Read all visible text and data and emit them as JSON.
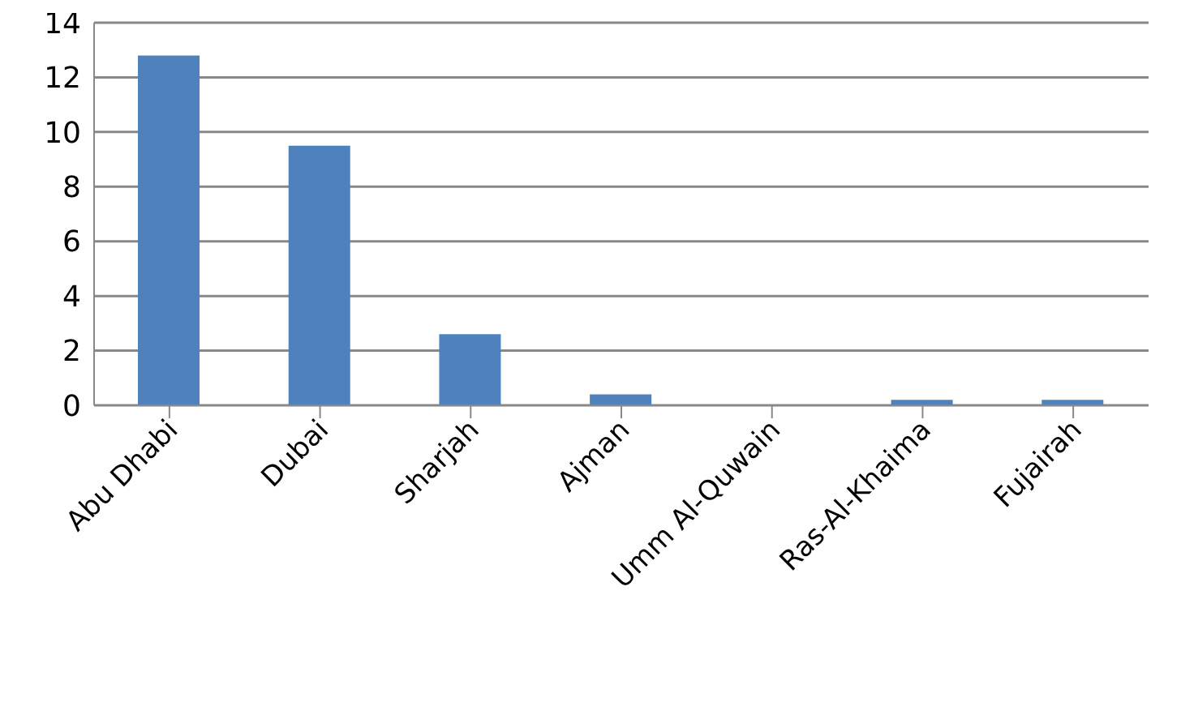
{
  "chart_data": {
    "type": "bar",
    "categories": [
      "Abu Dhabi",
      "Dubai",
      "Sharjah",
      "Ajman",
      "Umm Al-Quwain",
      "Ras-Al-Khaima",
      "Fujairah"
    ],
    "values": [
      12.8,
      9.5,
      2.6,
      0.4,
      0,
      0.2,
      0.2
    ],
    "color": "#4f81bd",
    "ylim": [
      0,
      14
    ],
    "yticks": [
      0,
      2,
      4,
      6,
      8,
      10,
      12,
      14
    ],
    "grid": "y"
  }
}
